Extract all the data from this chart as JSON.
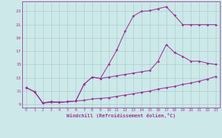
{
  "xlabel": "Windchill (Refroidissement éolien,°C)",
  "background_color": "#cce8e8",
  "grid_color": "#aacccc",
  "line_color": "#993399",
  "xlim": [
    -0.5,
    23.5
  ],
  "ylim": [
    8.5,
    24.5
  ],
  "xticks": [
    0,
    1,
    2,
    3,
    4,
    5,
    6,
    7,
    8,
    9,
    10,
    11,
    12,
    13,
    14,
    15,
    16,
    17,
    18,
    19,
    20,
    21,
    22,
    23
  ],
  "yticks": [
    9,
    11,
    13,
    15,
    17,
    19,
    21,
    23
  ],
  "line1_x": [
    0,
    1,
    2,
    3,
    4,
    5,
    6,
    7,
    8,
    9,
    10,
    11,
    12,
    13,
    14,
    15,
    16,
    17,
    18,
    19,
    20,
    21,
    22,
    23
  ],
  "line1_y": [
    11.5,
    10.9,
    9.2,
    9.4,
    9.3,
    9.4,
    9.5,
    12.0,
    13.1,
    12.9,
    15.0,
    17.2,
    20.0,
    22.3,
    23.0,
    23.1,
    23.4,
    23.7,
    22.4,
    21.0,
    21.0,
    21.0,
    21.0,
    21.0
  ],
  "line2_x": [
    0,
    1,
    2,
    3,
    4,
    5,
    6,
    7,
    8,
    9,
    10,
    11,
    12,
    13,
    14,
    15,
    16,
    17,
    18,
    19,
    20,
    21,
    22,
    23
  ],
  "line2_y": [
    11.5,
    10.9,
    9.2,
    9.4,
    9.3,
    9.4,
    9.5,
    12.0,
    13.1,
    12.9,
    13.1,
    13.3,
    13.5,
    13.7,
    13.9,
    14.1,
    15.5,
    18.0,
    16.8,
    16.2,
    15.5,
    15.5,
    15.2,
    15.0
  ],
  "line3_x": [
    0,
    1,
    2,
    3,
    4,
    5,
    6,
    7,
    8,
    9,
    10,
    11,
    12,
    13,
    14,
    15,
    16,
    17,
    18,
    19,
    20,
    21,
    22,
    23
  ],
  "line3_y": [
    11.5,
    10.9,
    9.2,
    9.3,
    9.3,
    9.4,
    9.5,
    9.6,
    9.8,
    9.9,
    10.0,
    10.2,
    10.4,
    10.6,
    10.8,
    11.0,
    11.3,
    11.5,
    11.7,
    12.0,
    12.2,
    12.5,
    12.8,
    13.2
  ]
}
